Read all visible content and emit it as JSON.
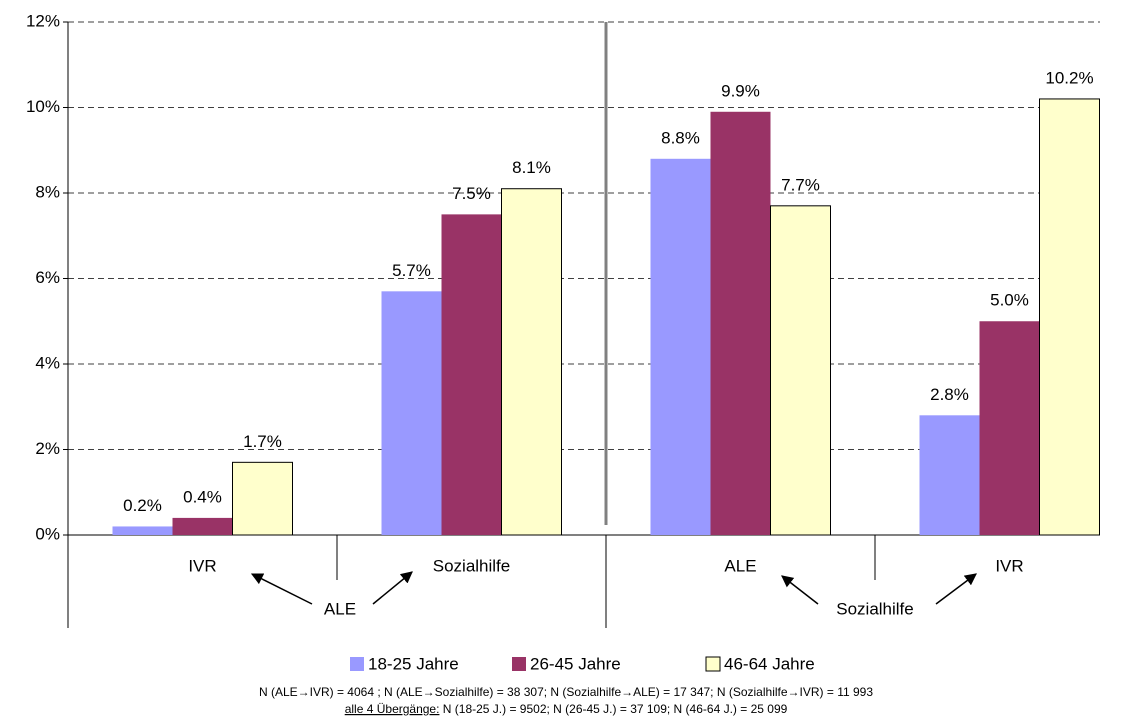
{
  "chart_data": {
    "type": "bar",
    "categories": [
      "IVR",
      "Sozialhilfe",
      "ALE",
      "IVR"
    ],
    "group_labels": [
      "ALE",
      "Sozialhilfe"
    ],
    "series": [
      {
        "name": "18-25 Jahre",
        "color": "#9999ff",
        "values": [
          0.2,
          5.7,
          8.8,
          2.8
        ],
        "value_labels": [
          "0.2%",
          "5.7%",
          "8.8%",
          "2.8%"
        ]
      },
      {
        "name": "26-45 Jahre",
        "color": "#993366",
        "values": [
          0.4,
          7.5,
          9.9,
          5.0
        ],
        "value_labels": [
          "0.4%",
          "7.5%",
          "9.9%",
          "5.0%"
        ]
      },
      {
        "name": "46-64 Jahre",
        "color": "#ffffcc",
        "values": [
          1.7,
          8.1,
          7.7,
          10.2
        ],
        "value_labels": [
          "1.7%",
          "8.1%",
          "7.7%",
          "10.2%"
        ]
      }
    ],
    "ylim": [
      0,
      12
    ],
    "yticks": [
      {
        "value": 0,
        "label": "0%"
      },
      {
        "value": 2,
        "label": "2%"
      },
      {
        "value": 4,
        "label": "4%"
      },
      {
        "value": 6,
        "label": "6%"
      },
      {
        "value": 8,
        "label": "8%"
      },
      {
        "value": 10,
        "label": "10%"
      },
      {
        "value": 12,
        "label": "12%"
      }
    ],
    "grid": true,
    "legend": "bottom",
    "footnotes": [
      "N (ALE→IVR) = 4064 ; N (ALE→Sozialhilfe) = 38 307; N (Sozialhilfe→ALE) = 17 347; N (Sozialhilfe→IVR) = 11 993",
      "alle 4 Übergänge:",
      " N (18-25 J.) = 9502; N (26-45 J.) = 37 109; N (46-64 J.) = 25 099"
    ]
  }
}
